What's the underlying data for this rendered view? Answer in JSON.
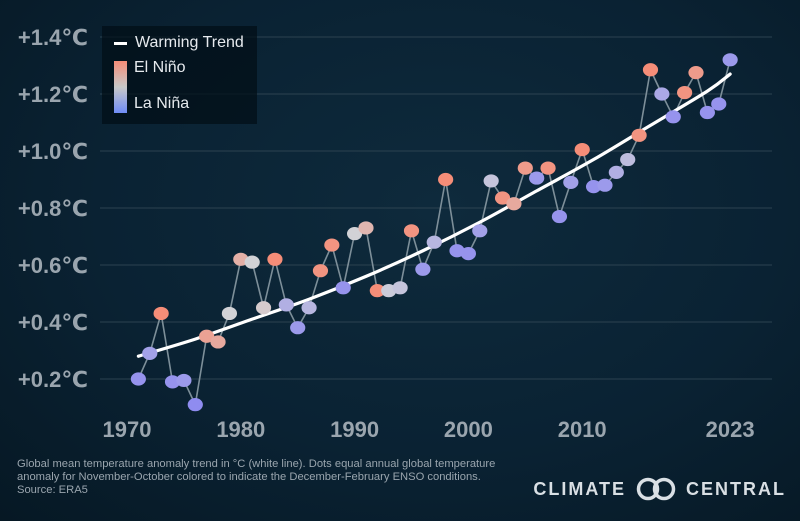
{
  "chart_data": {
    "type": "scatter",
    "xlabel": "",
    "ylabel": "",
    "xlim": [
      1966,
      2028
    ],
    "ylim": [
      0.1,
      1.45
    ],
    "x_ticks": [
      1970,
      1980,
      1990,
      2000,
      2010,
      2023
    ],
    "x_tick_labels": [
      "1970",
      "1980",
      "1990",
      "2000",
      "2010",
      "2023"
    ],
    "y_ticks": [
      0.2,
      0.4,
      0.6,
      0.8,
      1.0,
      1.2,
      1.4
    ],
    "y_tick_labels": [
      "+0.2℃",
      "+0.4℃",
      "+0.6℃",
      "+0.8℃",
      "+1.0℃",
      "+1.2℃",
      "+1.4℃"
    ],
    "grid": "horizontal",
    "legend": {
      "position": "top-left",
      "trend_label": "Warming Trend",
      "el_nino_label": "El Niño",
      "la_nina_label": "La Niña"
    },
    "colors": {
      "el_nino": "#f58d78",
      "neutral": "#d2d2d6",
      "la_nina": "#8f8cf0",
      "trend": "#ffffff",
      "connector": "#7d8f99",
      "grid": "#2c4250"
    },
    "series": [
      {
        "name": "",
        "points": [
          {
            "x": 1971,
            "y": 0.2,
            "enso": -0.9
          },
          {
            "x": 1972,
            "y": 0.29,
            "enso": -0.7
          },
          {
            "x": 1973,
            "y": 0.43,
            "enso": 1.0
          },
          {
            "x": 1974,
            "y": 0.19,
            "enso": -0.9
          },
          {
            "x": 1975,
            "y": 0.195,
            "enso": -0.8
          },
          {
            "x": 1976,
            "y": 0.11,
            "enso": -1.0
          },
          {
            "x": 1977,
            "y": 0.35,
            "enso": 0.7
          },
          {
            "x": 1978,
            "y": 0.33,
            "enso": 0.6
          },
          {
            "x": 1979,
            "y": 0.43,
            "enso": 0.0
          },
          {
            "x": 1980,
            "y": 0.62,
            "enso": 0.5
          },
          {
            "x": 1981,
            "y": 0.61,
            "enso": 0.0
          },
          {
            "x": 1982,
            "y": 0.45,
            "enso": 0.1
          },
          {
            "x": 1983,
            "y": 0.62,
            "enso": 1.0
          },
          {
            "x": 1984,
            "y": 0.46,
            "enso": -0.5
          },
          {
            "x": 1985,
            "y": 0.38,
            "enso": -0.8
          },
          {
            "x": 1986,
            "y": 0.45,
            "enso": -0.4
          },
          {
            "x": 1987,
            "y": 0.58,
            "enso": 0.9
          },
          {
            "x": 1988,
            "y": 0.67,
            "enso": 0.9
          },
          {
            "x": 1989,
            "y": 0.52,
            "enso": -0.9
          },
          {
            "x": 1990,
            "y": 0.71,
            "enso": 0.0
          },
          {
            "x": 1991,
            "y": 0.73,
            "enso": 0.4
          },
          {
            "x": 1992,
            "y": 0.51,
            "enso": 1.0
          },
          {
            "x": 1993,
            "y": 0.51,
            "enso": -0.1
          },
          {
            "x": 1994,
            "y": 0.52,
            "enso": -0.2
          },
          {
            "x": 1995,
            "y": 0.72,
            "enso": 0.9
          },
          {
            "x": 1996,
            "y": 0.585,
            "enso": -0.8
          },
          {
            "x": 1997,
            "y": 0.68,
            "enso": -0.4
          },
          {
            "x": 1998,
            "y": 0.9,
            "enso": 1.0
          },
          {
            "x": 1999,
            "y": 0.65,
            "enso": -0.9
          },
          {
            "x": 2000,
            "y": 0.64,
            "enso": -0.9
          },
          {
            "x": 2001,
            "y": 0.72,
            "enso": -0.7
          },
          {
            "x": 2002,
            "y": 0.895,
            "enso": -0.2
          },
          {
            "x": 2003,
            "y": 0.835,
            "enso": 0.9
          },
          {
            "x": 2004,
            "y": 0.815,
            "enso": 0.6
          },
          {
            "x": 2005,
            "y": 0.94,
            "enso": 0.8
          },
          {
            "x": 2006,
            "y": 0.905,
            "enso": -0.8
          },
          {
            "x": 2007,
            "y": 0.94,
            "enso": 0.9
          },
          {
            "x": 2008,
            "y": 0.77,
            "enso": -0.9
          },
          {
            "x": 2009,
            "y": 0.89,
            "enso": -0.7
          },
          {
            "x": 2010,
            "y": 1.005,
            "enso": 1.0
          },
          {
            "x": 2011,
            "y": 0.875,
            "enso": -0.9
          },
          {
            "x": 2012,
            "y": 0.88,
            "enso": -0.8
          },
          {
            "x": 2013,
            "y": 0.925,
            "enso": -0.5
          },
          {
            "x": 2014,
            "y": 0.97,
            "enso": -0.3
          },
          {
            "x": 2015,
            "y": 1.055,
            "enso": 0.9
          },
          {
            "x": 2016,
            "y": 1.285,
            "enso": 1.0
          },
          {
            "x": 2017,
            "y": 1.2,
            "enso": -0.6
          },
          {
            "x": 2018,
            "y": 1.12,
            "enso": -0.9
          },
          {
            "x": 2019,
            "y": 1.205,
            "enso": 0.9
          },
          {
            "x": 2020,
            "y": 1.275,
            "enso": 0.8
          },
          {
            "x": 2021,
            "y": 1.135,
            "enso": -0.9
          },
          {
            "x": 2022,
            "y": 1.165,
            "enso": -0.9
          },
          {
            "x": 2023,
            "y": 1.32,
            "enso": -0.8
          }
        ]
      }
    ],
    "trend": {
      "x": [
        1971,
        1976,
        1981,
        1986,
        1991,
        1996,
        2001,
        2006,
        2011,
        2016,
        2021,
        2023
      ],
      "y": [
        0.28,
        0.34,
        0.41,
        0.48,
        0.56,
        0.65,
        0.75,
        0.86,
        0.97,
        1.09,
        1.21,
        1.27
      ]
    }
  },
  "caption": {
    "line1": "Global mean temperature anomaly trend in °C (white line). Dots equal annual global temperature",
    "line2": "anomaly for November-October colored to indicate the December-February ENSO conditions.",
    "line3": "Source: ERA5"
  },
  "brand": {
    "left": "CLIMATE",
    "right": "CENTRAL"
  }
}
